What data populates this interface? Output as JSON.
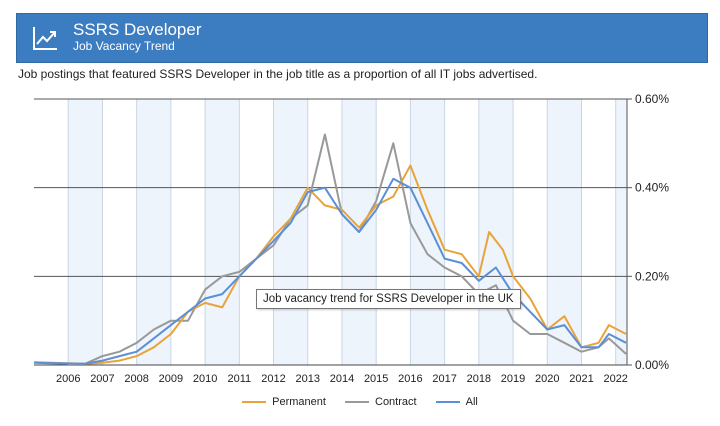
{
  "header": {
    "title": "SSRS Developer",
    "subtitle": "Job Vacancy Trend",
    "icon": "trend-chart-icon"
  },
  "description": "Job postings that featured SSRS Developer in the job title as a proportion of all IT jobs advertised.",
  "tooltip": "Job vacancy trend for SSRS Developer in the UK",
  "chart_data": {
    "type": "line",
    "title": "Job Vacancy Trend",
    "xlabel": "",
    "ylabel": "",
    "x_ticks": [
      "2006",
      "2007",
      "2008",
      "2009",
      "2010",
      "2011",
      "2012",
      "2013",
      "2014",
      "2015",
      "2016",
      "2017",
      "2018",
      "2019",
      "2020",
      "2021",
      "2022"
    ],
    "y_ticks": [
      "0.00%",
      "0.20%",
      "0.40%",
      "0.60%"
    ],
    "xlim": [
      2005.0,
      2022.33
    ],
    "ylim": [
      0,
      0.6
    ],
    "grid": true,
    "legend_position": "bottom",
    "series": [
      {
        "name": "Permanent",
        "color": "#e8a33a",
        "points": [
          [
            2006.0,
            0.002
          ],
          [
            2006.5,
            0.003
          ],
          [
            2007.0,
            0.005
          ],
          [
            2007.5,
            0.01
          ],
          [
            2008.0,
            0.02
          ],
          [
            2008.5,
            0.04
          ],
          [
            2009.0,
            0.07
          ],
          [
            2009.5,
            0.12
          ],
          [
            2010.0,
            0.14
          ],
          [
            2010.5,
            0.13
          ],
          [
            2011.0,
            0.2
          ],
          [
            2011.5,
            0.24
          ],
          [
            2012.0,
            0.29
          ],
          [
            2012.5,
            0.33
          ],
          [
            2013.0,
            0.4
          ],
          [
            2013.5,
            0.36
          ],
          [
            2014.0,
            0.35
          ],
          [
            2014.5,
            0.31
          ],
          [
            2015.0,
            0.36
          ],
          [
            2015.5,
            0.38
          ],
          [
            2016.0,
            0.45
          ],
          [
            2016.5,
            0.35
          ],
          [
            2017.0,
            0.26
          ],
          [
            2017.5,
            0.25
          ],
          [
            2018.0,
            0.2
          ],
          [
            2018.3,
            0.3
          ],
          [
            2018.7,
            0.26
          ],
          [
            2019.0,
            0.2
          ],
          [
            2019.5,
            0.15
          ],
          [
            2020.0,
            0.08
          ],
          [
            2020.5,
            0.11
          ],
          [
            2021.0,
            0.04
          ],
          [
            2021.5,
            0.05
          ],
          [
            2021.8,
            0.09
          ],
          [
            2022.3,
            0.07
          ]
        ]
      },
      {
        "name": "Contract",
        "color": "#999999",
        "points": [
          [
            2005.0,
            0.006
          ],
          [
            2006.0,
            0.004
          ],
          [
            2006.5,
            0.003
          ],
          [
            2007.0,
            0.02
          ],
          [
            2007.5,
            0.03
          ],
          [
            2008.0,
            0.05
          ],
          [
            2008.5,
            0.08
          ],
          [
            2009.0,
            0.1
          ],
          [
            2009.5,
            0.1
          ],
          [
            2010.0,
            0.17
          ],
          [
            2010.5,
            0.2
          ],
          [
            2011.0,
            0.21
          ],
          [
            2011.5,
            0.24
          ],
          [
            2012.0,
            0.27
          ],
          [
            2012.5,
            0.33
          ],
          [
            2013.0,
            0.36
          ],
          [
            2013.5,
            0.52
          ],
          [
            2014.0,
            0.34
          ],
          [
            2014.5,
            0.3
          ],
          [
            2015.0,
            0.37
          ],
          [
            2015.5,
            0.5
          ],
          [
            2016.0,
            0.32
          ],
          [
            2016.5,
            0.25
          ],
          [
            2017.0,
            0.22
          ],
          [
            2017.5,
            0.2
          ],
          [
            2018.0,
            0.16
          ],
          [
            2018.5,
            0.18
          ],
          [
            2019.0,
            0.1
          ],
          [
            2019.5,
            0.07
          ],
          [
            2020.0,
            0.07
          ],
          [
            2020.5,
            0.05
          ],
          [
            2021.0,
            0.03
          ],
          [
            2021.5,
            0.04
          ],
          [
            2021.8,
            0.06
          ],
          [
            2022.3,
            0.025
          ]
        ]
      },
      {
        "name": "All",
        "color": "#5b8fd6",
        "points": [
          [
            2005.0,
            0.005
          ],
          [
            2006.0,
            0.003
          ],
          [
            2006.5,
            0.003
          ],
          [
            2007.0,
            0.01
          ],
          [
            2007.5,
            0.02
          ],
          [
            2008.0,
            0.03
          ],
          [
            2008.5,
            0.06
          ],
          [
            2009.0,
            0.09
          ],
          [
            2009.5,
            0.12
          ],
          [
            2010.0,
            0.15
          ],
          [
            2010.5,
            0.16
          ],
          [
            2011.0,
            0.2
          ],
          [
            2011.5,
            0.24
          ],
          [
            2012.0,
            0.28
          ],
          [
            2012.5,
            0.32
          ],
          [
            2013.0,
            0.39
          ],
          [
            2013.5,
            0.4
          ],
          [
            2014.0,
            0.34
          ],
          [
            2014.5,
            0.3
          ],
          [
            2015.0,
            0.35
          ],
          [
            2015.5,
            0.42
          ],
          [
            2016.0,
            0.4
          ],
          [
            2016.5,
            0.32
          ],
          [
            2017.0,
            0.24
          ],
          [
            2017.5,
            0.23
          ],
          [
            2018.0,
            0.19
          ],
          [
            2018.5,
            0.22
          ],
          [
            2019.0,
            0.16
          ],
          [
            2019.5,
            0.12
          ],
          [
            2020.0,
            0.08
          ],
          [
            2020.5,
            0.09
          ],
          [
            2021.0,
            0.04
          ],
          [
            2021.5,
            0.04
          ],
          [
            2021.8,
            0.07
          ],
          [
            2022.3,
            0.05
          ]
        ]
      }
    ]
  }
}
